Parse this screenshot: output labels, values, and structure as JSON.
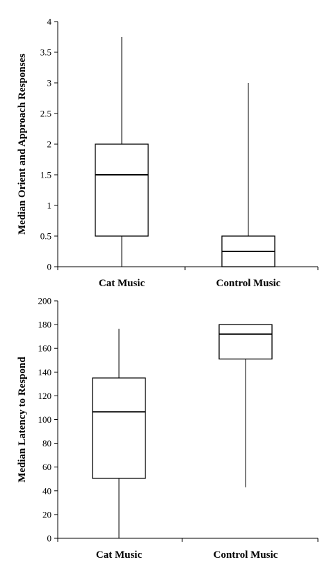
{
  "chart_data": [
    {
      "type": "box",
      "ylabel": "Median Orient and Approach Responses",
      "ylim": [
        0,
        4
      ],
      "ytick_step": 0.5,
      "yticks": [
        "0",
        "0.5",
        "1",
        "1.5",
        "2",
        "2.5",
        "3",
        "3.5",
        "4"
      ],
      "categories": [
        "Cat Music",
        "Control Music"
      ],
      "boxes": [
        {
          "category": "Cat Music",
          "min": 0,
          "q1": 0.5,
          "median": 1.5,
          "q3": 2.0,
          "max": 3.75
        },
        {
          "category": "Control Music",
          "min": 0,
          "q1": 0,
          "median": 0.25,
          "q3": 0.5,
          "max": 3.0
        }
      ],
      "grid": false
    },
    {
      "type": "box",
      "ylabel": "Median Latency to Respond",
      "ylim": [
        0,
        200
      ],
      "ytick_step": 20,
      "yticks": [
        "0",
        "20",
        "40",
        "60",
        "80",
        "100",
        "120",
        "140",
        "160",
        "180",
        "200"
      ],
      "categories": [
        "Cat Music",
        "Control Music"
      ],
      "boxes": [
        {
          "category": "Cat Music",
          "min": 0,
          "q1": 50.5,
          "median": 106.5,
          "q3": 135,
          "max": 176.5
        },
        {
          "category": "Control Music",
          "min": 43,
          "q1": 151,
          "median": 172,
          "q3": 180,
          "max": 180
        }
      ],
      "grid": false
    }
  ]
}
